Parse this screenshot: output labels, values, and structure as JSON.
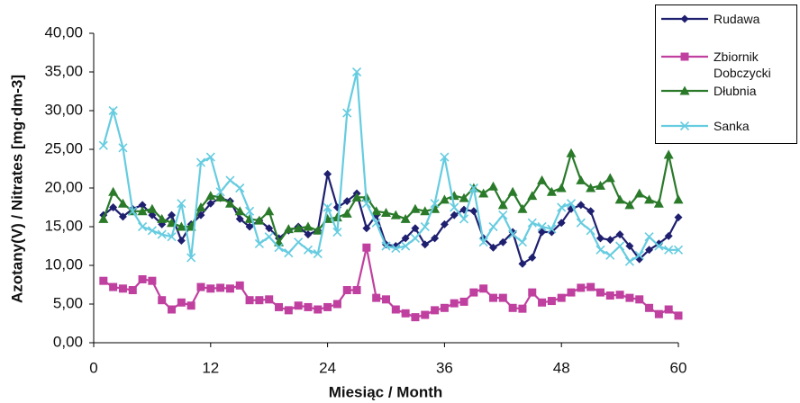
{
  "chart_data": {
    "type": "line",
    "x_label": "Miesiąc / Month",
    "y_label": "Azotany(V) / Nitrates [mg·dm-3]",
    "x": [
      1,
      2,
      3,
      4,
      5,
      6,
      7,
      8,
      9,
      10,
      11,
      12,
      13,
      14,
      15,
      16,
      17,
      18,
      19,
      20,
      21,
      22,
      23,
      24,
      25,
      26,
      27,
      28,
      29,
      30,
      31,
      32,
      33,
      34,
      35,
      36,
      37,
      38,
      39,
      40,
      41,
      42,
      43,
      44,
      45,
      46,
      47,
      48,
      49,
      50,
      51,
      52,
      53,
      54,
      55,
      56,
      57,
      58,
      59,
      60
    ],
    "xlim": [
      0,
      60
    ],
    "xticks": [
      0,
      12,
      24,
      36,
      48,
      60
    ],
    "ylim": [
      0,
      40
    ],
    "yticks": [
      {
        "value": 0,
        "label": "0,00"
      },
      {
        "value": 5,
        "label": "5,00"
      },
      {
        "value": 10,
        "label": "10,00"
      },
      {
        "value": 15,
        "label": "15,00"
      },
      {
        "value": 20,
        "label": "20,00"
      },
      {
        "value": 25,
        "label": "25,00"
      },
      {
        "value": 30,
        "label": "30,00"
      },
      {
        "value": 35,
        "label": "35,00"
      },
      {
        "value": 40,
        "label": "40,00"
      }
    ],
    "grid": false,
    "legend": "top-right",
    "series": [
      {
        "name": "Rudawa",
        "color": "#1f1f70",
        "marker": "diamond",
        "values": [
          16.5,
          17.5,
          16.3,
          17.3,
          17.8,
          16.5,
          15.3,
          16.5,
          13.2,
          15.3,
          16.5,
          18.0,
          18.7,
          18.3,
          16.0,
          15.0,
          15.8,
          14.8,
          13.5,
          14.5,
          15.0,
          14.0,
          14.5,
          21.8,
          17.5,
          18.3,
          19.3,
          14.8,
          16.5,
          12.7,
          12.5,
          13.5,
          14.8,
          12.7,
          13.5,
          15.3,
          16.5,
          17.2,
          17.0,
          13.5,
          12.3,
          13.0,
          14.3,
          10.2,
          11.0,
          14.3,
          14.3,
          15.5,
          17.3,
          17.8,
          17.0,
          13.5,
          13.3,
          14.0,
          12.5,
          10.8,
          12.0,
          12.8,
          13.8,
          16.2
        ]
      },
      {
        "name": "Zbiornik Dobczycki",
        "color": "#c040a0",
        "marker": "square",
        "values": [
          8.0,
          7.2,
          7.0,
          6.8,
          8.2,
          8.0,
          5.5,
          4.3,
          5.2,
          4.8,
          7.2,
          7.0,
          7.1,
          7.0,
          7.4,
          5.5,
          5.5,
          5.6,
          4.6,
          4.2,
          4.8,
          4.6,
          4.3,
          4.6,
          5.0,
          6.8,
          6.8,
          12.3,
          5.8,
          5.6,
          4.3,
          3.8,
          3.3,
          3.6,
          4.2,
          4.5,
          5.1,
          5.3,
          6.5,
          7.0,
          5.8,
          5.8,
          4.5,
          4.4,
          6.5,
          5.2,
          5.4,
          5.8,
          6.5,
          7.1,
          7.2,
          6.5,
          6.1,
          6.2,
          5.8,
          5.6,
          4.5,
          3.7,
          4.3,
          3.5
        ]
      },
      {
        "name": "Dłubnia",
        "color": "#2a7a2a",
        "marker": "triangle",
        "values": [
          16.0,
          19.5,
          18.0,
          17.0,
          17.0,
          17.3,
          16.0,
          15.5,
          15.0,
          15.0,
          17.5,
          19.0,
          18.8,
          18.0,
          17.0,
          16.0,
          15.8,
          17.0,
          13.0,
          14.7,
          14.8,
          15.0,
          14.5,
          16.0,
          16.2,
          16.7,
          18.8,
          18.8,
          17.0,
          16.8,
          16.5,
          16.0,
          17.3,
          17.0,
          17.3,
          18.5,
          19.0,
          18.7,
          20.0,
          19.3,
          20.2,
          17.8,
          19.5,
          17.3,
          19.0,
          21.0,
          19.5,
          20.0,
          24.5,
          21.0,
          20.0,
          20.3,
          21.3,
          18.5,
          17.8,
          19.3,
          18.5,
          18.0,
          24.3,
          18.5
        ]
      },
      {
        "name": "Sanka",
        "color": "#66cce0",
        "marker": "x",
        "values": [
          25.5,
          30.0,
          25.2,
          17.0,
          15.0,
          14.5,
          14.0,
          13.7,
          18.0,
          11.0,
          23.3,
          24.0,
          19.5,
          21.0,
          20.0,
          17.0,
          12.8,
          13.7,
          12.3,
          11.6,
          13.0,
          12.0,
          11.5,
          17.5,
          14.3,
          29.7,
          35.0,
          18.0,
          15.5,
          12.5,
          12.2,
          12.5,
          13.5,
          15.0,
          18.0,
          24.0,
          17.5,
          16.0,
          20.0,
          13.0,
          15.0,
          16.5,
          14.0,
          13.0,
          15.5,
          15.0,
          14.7,
          17.5,
          18.0,
          15.5,
          14.5,
          12.0,
          11.3,
          12.5,
          10.5,
          11.3,
          13.7,
          12.5,
          12.0,
          12.0
        ]
      }
    ]
  }
}
